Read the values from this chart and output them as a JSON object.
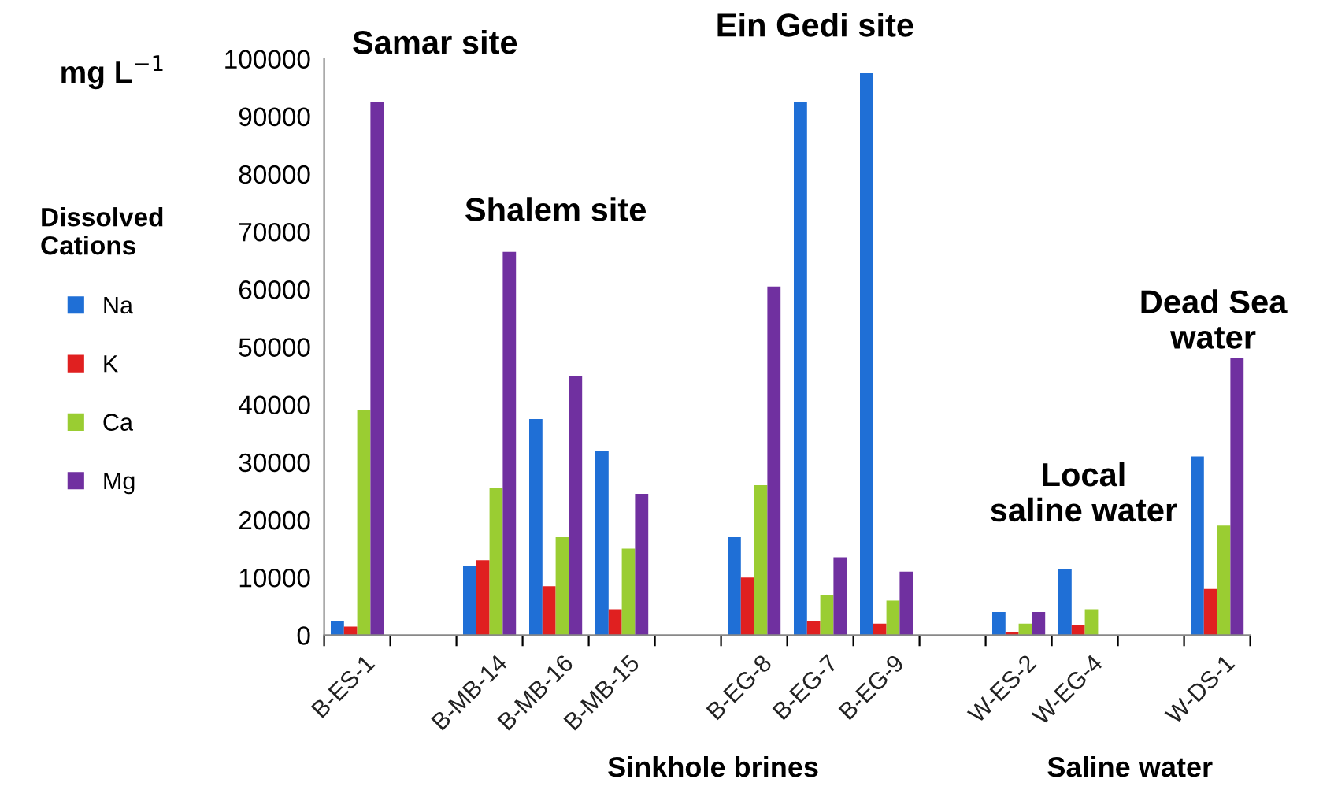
{
  "chart_data": {
    "type": "bar",
    "ylabel": "mg L$^{−1}$",
    "legend_title": "Dissolved\nCations",
    "categories": [
      "B-ES-1",
      null,
      "B-MB-14",
      "B-MB-16",
      "B-MB-15",
      null,
      "B-EG-8",
      "B-EG-7",
      "B-EG-9",
      null,
      "W-ES-2",
      "W-EG-4",
      null,
      "W-DS-1"
    ],
    "series": [
      {
        "name": "Na",
        "color": "#1f6fd6",
        "values": [
          2500,
          null,
          12000,
          37500,
          32000,
          null,
          17000,
          92500,
          97500,
          null,
          4000,
          11500,
          null,
          31000
        ]
      },
      {
        "name": "K",
        "color": "#e02020",
        "values": [
          1500,
          null,
          13000,
          8500,
          4500,
          null,
          10000,
          2500,
          2000,
          null,
          500,
          1700,
          null,
          8000
        ]
      },
      {
        "name": "Ca",
        "color": "#9acd32",
        "values": [
          39000,
          null,
          25500,
          17000,
          15000,
          null,
          26000,
          7000,
          6000,
          null,
          2000,
          4500,
          null,
          19000
        ]
      },
      {
        "name": "Mg",
        "color": "#7030a0",
        "values": [
          92500,
          null,
          66500,
          45000,
          24500,
          null,
          60500,
          13500,
          11000,
          null,
          4000,
          null,
          null,
          48000
        ]
      }
    ],
    "ylim": [
      0,
      100000
    ],
    "yticks": [
      0,
      10000,
      20000,
      30000,
      40000,
      50000,
      60000,
      70000,
      80000,
      90000,
      100000
    ],
    "grid": false,
    "legend": "left",
    "annotations": [
      "Samar site",
      "Shalem site",
      "Ein Gedi site",
      "Local\nsaline water",
      "Dead Sea\nwater",
      "Sinkhole brines",
      "Saline water"
    ]
  }
}
